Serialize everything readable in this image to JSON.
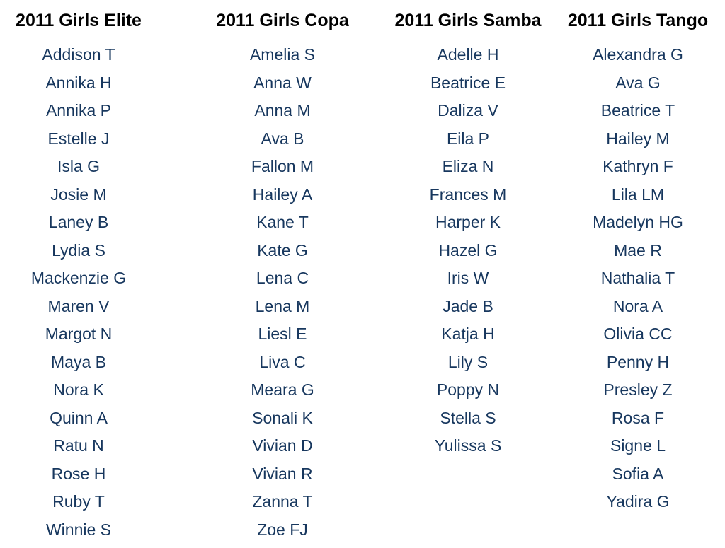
{
  "teams": [
    {
      "title": "2011 Girls Elite",
      "players": [
        "Addison T",
        "Annika H",
        "Annika P",
        "Estelle J",
        "Isla G",
        "Josie M",
        "Laney B",
        "Lydia S",
        "Mackenzie G",
        "Maren V",
        "Margot N",
        "Maya B",
        "Nora K",
        "Quinn A",
        "Ratu N",
        "Rose H",
        "Ruby T",
        "Winnie S"
      ]
    },
    {
      "title": "2011 Girls Copa",
      "players": [
        "Amelia S",
        "Anna W",
        "Anna M",
        "Ava B",
        "Fallon M",
        "Hailey A",
        "Kane T",
        "Kate G",
        "Lena C",
        "Lena M",
        "Liesl E",
        "Liva C",
        "Meara G",
        "Sonali K",
        "Vivian D",
        "Vivian R",
        "Zanna T",
        "Zoe FJ"
      ]
    },
    {
      "title": "2011 Girls Samba",
      "players": [
        "Adelle H",
        "Beatrice E",
        "Daliza V",
        "Eila P",
        "Eliza N",
        "Frances M",
        "Harper K",
        "Hazel G",
        "Iris W",
        "Jade B",
        "Katja H",
        "Lily S",
        "Poppy N",
        "Stella S",
        "Yulissa S"
      ]
    },
    {
      "title": "2011 Girls Tango",
      "players": [
        "Alexandra G",
        "Ava G",
        "Beatrice T",
        "Hailey M",
        "Kathryn F",
        "Lila LM",
        "Madelyn HG",
        "Mae R",
        "Nathalia T",
        "Nora A",
        "Olivia CC",
        "Penny H",
        "Presley Z",
        "Rosa F",
        "Signe L",
        "Sofia A",
        "Yadira G"
      ]
    }
  ]
}
